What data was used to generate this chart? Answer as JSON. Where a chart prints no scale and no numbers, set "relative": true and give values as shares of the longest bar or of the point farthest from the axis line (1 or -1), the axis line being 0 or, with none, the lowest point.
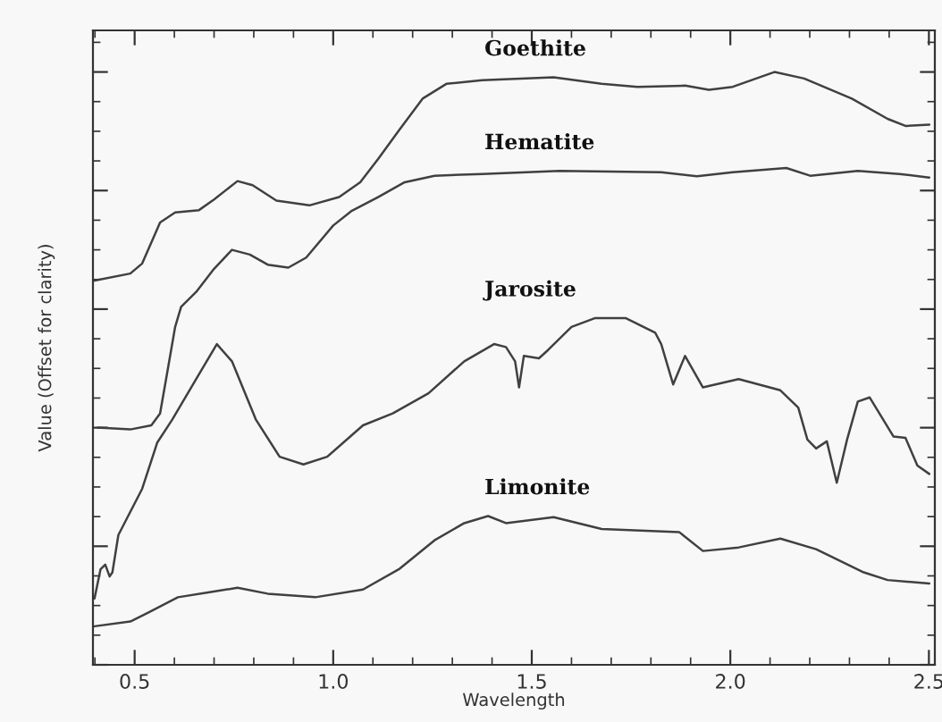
{
  "chart_data": {
    "type": "line",
    "relative": true,
    "xlabel": "Wavelength",
    "ylabel": "Value (Offset for clarity)",
    "xlim": [
      0.395,
      2.515
    ],
    "xticks": [
      {
        "value": 0.5,
        "label": "0.5"
      },
      {
        "value": 1.0,
        "label": "1.0"
      },
      {
        "value": 1.5,
        "label": "1.5"
      },
      {
        "value": 2.0,
        "label": "2.0"
      },
      {
        "value": 2.5,
        "label": "2.5"
      }
    ],
    "tick_labels": "x",
    "grid": false,
    "marker": "none",
    "line_style": "solid",
    "series": [
      {
        "name": "Goethite",
        "color": "#404040",
        "x": [
          0.399,
          0.489,
          0.519,
          0.564,
          0.602,
          0.662,
          0.7,
          0.759,
          0.797,
          0.857,
          0.94,
          1.015,
          1.068,
          1.113,
          1.165,
          1.225,
          1.285,
          1.375,
          1.555,
          1.676,
          1.766,
          1.886,
          1.946,
          2.006,
          2.111,
          2.186,
          2.306,
          2.396,
          2.441,
          2.501
        ],
        "values": [
          0.648,
          0.66,
          0.677,
          0.746,
          0.763,
          0.767,
          0.785,
          0.816,
          0.809,
          0.783,
          0.775,
          0.789,
          0.814,
          0.853,
          0.901,
          0.955,
          0.98,
          0.986,
          0.991,
          0.98,
          0.975,
          0.977,
          0.97,
          0.975,
          1.0,
          0.989,
          0.955,
          0.921,
          0.909,
          0.911
        ]
      },
      {
        "name": "Hematite",
        "color": "#404040",
        "x": [
          0.407,
          0.489,
          0.542,
          0.564,
          0.587,
          0.602,
          0.617,
          0.655,
          0.7,
          0.745,
          0.79,
          0.835,
          0.887,
          0.932,
          1.0,
          1.045,
          1.113,
          1.18,
          1.255,
          1.375,
          1.57,
          1.826,
          1.916,
          2.006,
          2.141,
          2.201,
          2.321,
          2.426,
          2.501
        ],
        "values": [
          0.4,
          0.397,
          0.404,
          0.424,
          0.512,
          0.57,
          0.604,
          0.629,
          0.668,
          0.7,
          0.692,
          0.675,
          0.67,
          0.687,
          0.741,
          0.765,
          0.789,
          0.814,
          0.825,
          0.828,
          0.833,
          0.831,
          0.824,
          0.831,
          0.838,
          0.825,
          0.833,
          0.828,
          0.822
        ]
      },
      {
        "name": "Jarosite",
        "color": "#404040",
        "x": [
          0.399,
          0.414,
          0.426,
          0.437,
          0.444,
          0.459,
          0.519,
          0.557,
          0.595,
          0.655,
          0.707,
          0.745,
          0.805,
          0.865,
          0.925,
          0.985,
          1.075,
          1.15,
          1.24,
          1.33,
          1.405,
          1.435,
          1.458,
          1.468,
          1.48,
          1.518,
          1.541,
          1.6,
          1.66,
          1.736,
          1.811,
          1.826,
          1.856,
          1.886,
          1.931,
          2.021,
          2.126,
          2.171,
          2.194,
          2.216,
          2.243,
          2.268,
          2.294,
          2.321,
          2.351,
          2.411,
          2.441,
          2.471,
          2.501
        ],
        "values": [
          0.112,
          0.161,
          0.169,
          0.149,
          0.156,
          0.219,
          0.297,
          0.375,
          0.414,
          0.482,
          0.541,
          0.512,
          0.414,
          0.351,
          0.338,
          0.351,
          0.404,
          0.424,
          0.458,
          0.512,
          0.541,
          0.536,
          0.512,
          0.468,
          0.521,
          0.517,
          0.531,
          0.57,
          0.585,
          0.585,
          0.56,
          0.541,
          0.473,
          0.521,
          0.468,
          0.482,
          0.463,
          0.434,
          0.38,
          0.365,
          0.377,
          0.307,
          0.38,
          0.444,
          0.451,
          0.385,
          0.383,
          0.336,
          0.322
        ]
      },
      {
        "name": "Limonite",
        "color": "#404040",
        "x": [
          0.399,
          0.489,
          0.534,
          0.609,
          0.685,
          0.759,
          0.835,
          0.955,
          1.075,
          1.165,
          1.255,
          1.33,
          1.39,
          1.435,
          1.555,
          1.676,
          1.871,
          1.931,
          2.021,
          2.126,
          2.216,
          2.336,
          2.396,
          2.501
        ],
        "values": [
          0.065,
          0.073,
          0.088,
          0.114,
          0.122,
          0.13,
          0.12,
          0.114,
          0.127,
          0.161,
          0.21,
          0.239,
          0.251,
          0.239,
          0.249,
          0.229,
          0.224,
          0.192,
          0.198,
          0.213,
          0.195,
          0.156,
          0.143,
          0.137
        ]
      }
    ]
  }
}
